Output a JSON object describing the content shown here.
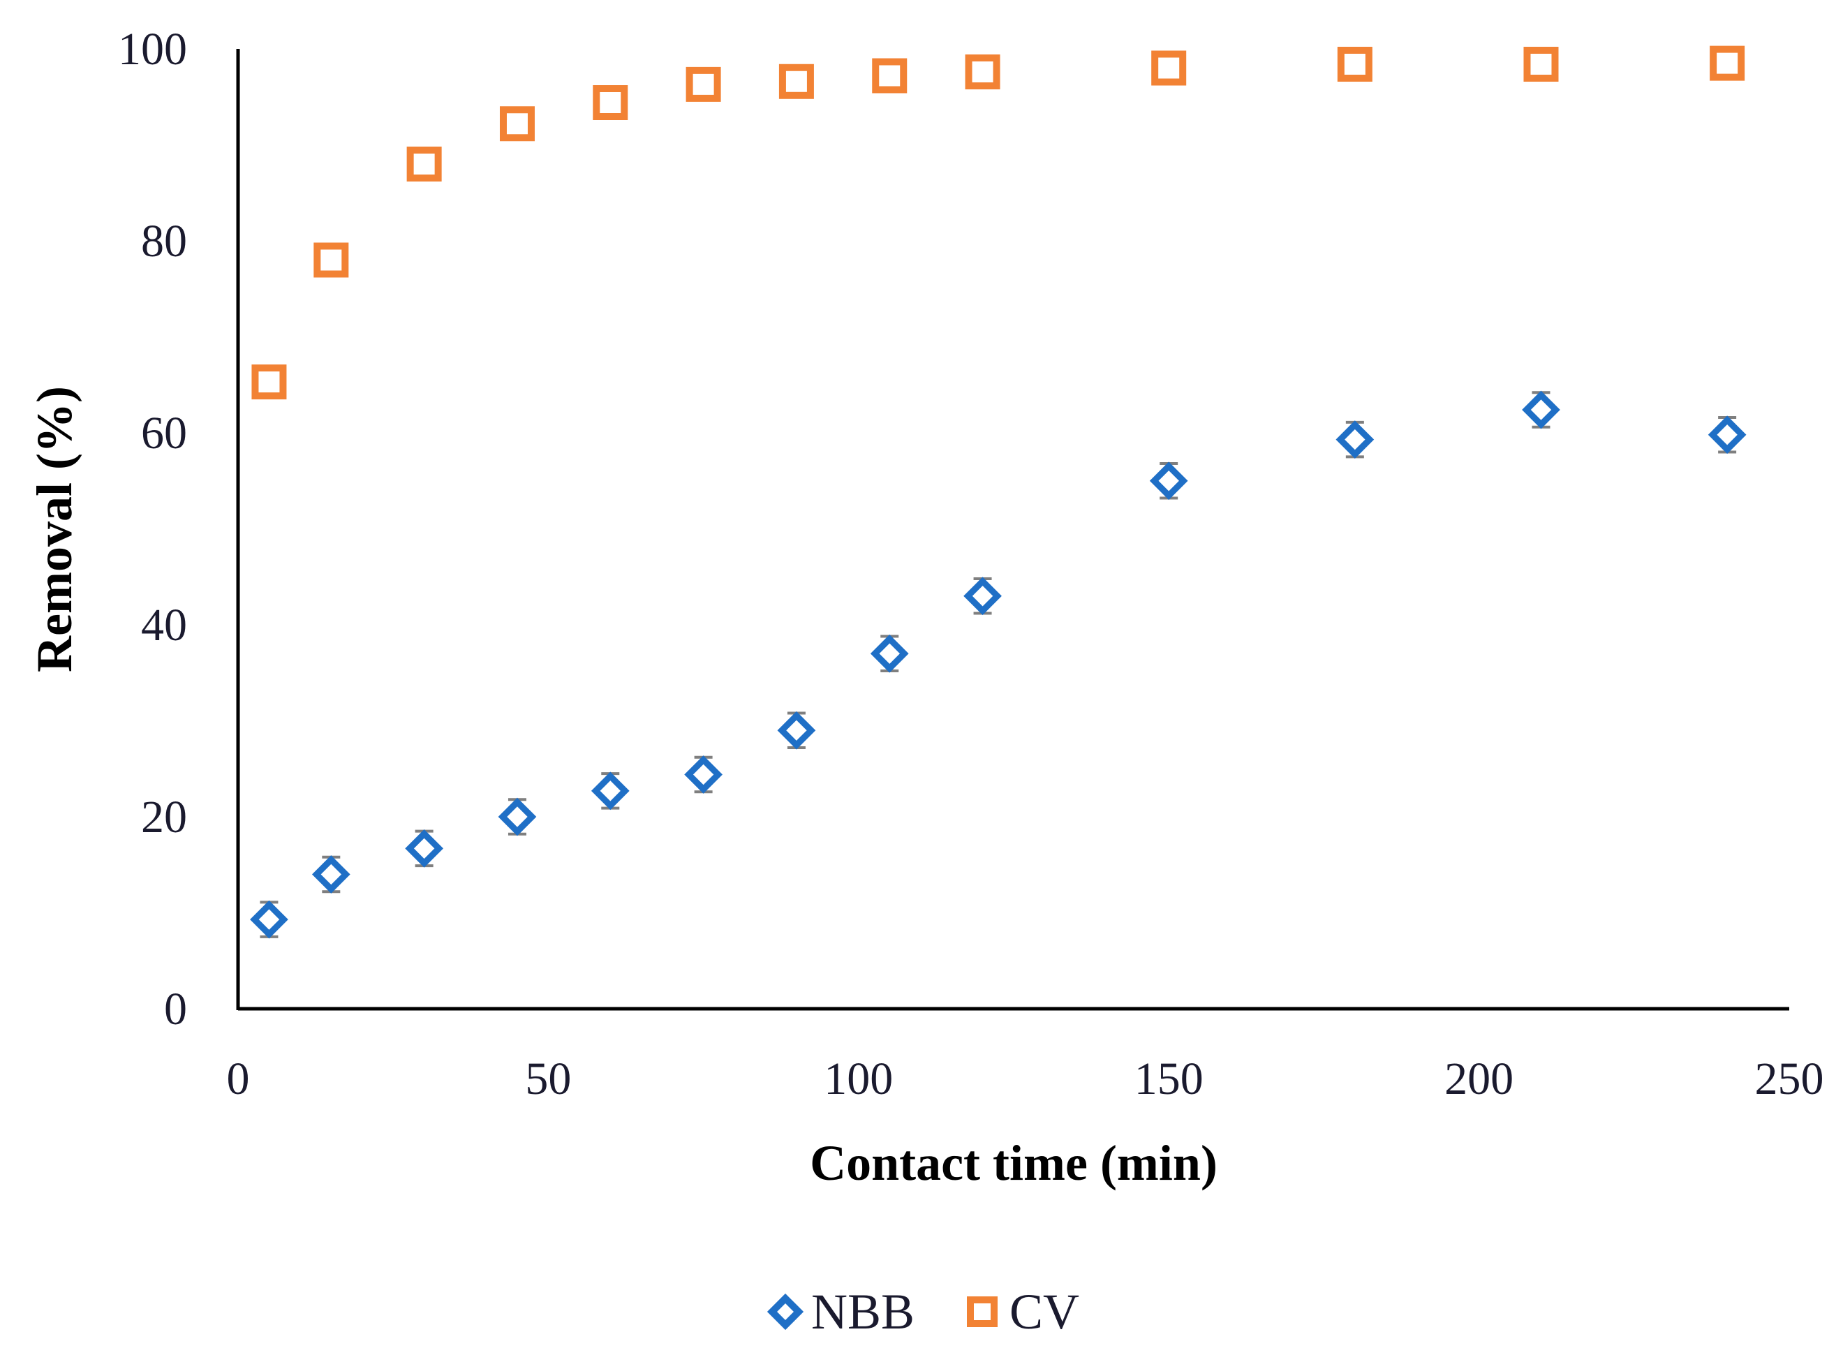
{
  "chart_data": {
    "type": "scatter",
    "title": "",
    "xlabel": "Contact time (min)",
    "ylabel": "Removal (%)",
    "xlim": [
      0,
      250
    ],
    "ylim": [
      0,
      100
    ],
    "xticks": [
      "0",
      "50",
      "100",
      "150",
      "200",
      "250"
    ],
    "yticks": [
      "0",
      "20",
      "40",
      "60",
      "80",
      "100"
    ],
    "legend_position": "bottom-center",
    "grid": false,
    "series": [
      {
        "name": "NBB",
        "marker": "diamond",
        "color": "#1f6fc6",
        "x": [
          5,
          15,
          30,
          45,
          60,
          75,
          90,
          105,
          120,
          150,
          180,
          210,
          240
        ],
        "y": [
          9.3,
          14.0,
          16.7,
          20.0,
          22.7,
          24.4,
          29.0,
          37.0,
          43.0,
          55.0,
          59.3,
          62.4,
          59.8
        ],
        "error": [
          1.8,
          1.8,
          1.8,
          1.8,
          1.8,
          1.8,
          1.8,
          1.8,
          1.8,
          1.8,
          1.8,
          1.8,
          1.8
        ]
      },
      {
        "name": "CV",
        "marker": "square",
        "color": "#f28234",
        "x": [
          5,
          15,
          30,
          45,
          60,
          75,
          90,
          105,
          120,
          150,
          180,
          210,
          240
        ],
        "y": [
          65.3,
          78.0,
          88.0,
          92.2,
          94.4,
          96.3,
          96.6,
          97.2,
          97.6,
          98.0,
          98.4,
          98.4,
          98.5
        ],
        "error": [
          1.6,
          1.6,
          1.6,
          1.6,
          1.6,
          1.6,
          1.6,
          1.6,
          1.6,
          1.6,
          1.6,
          1.6,
          1.6
        ]
      }
    ]
  }
}
